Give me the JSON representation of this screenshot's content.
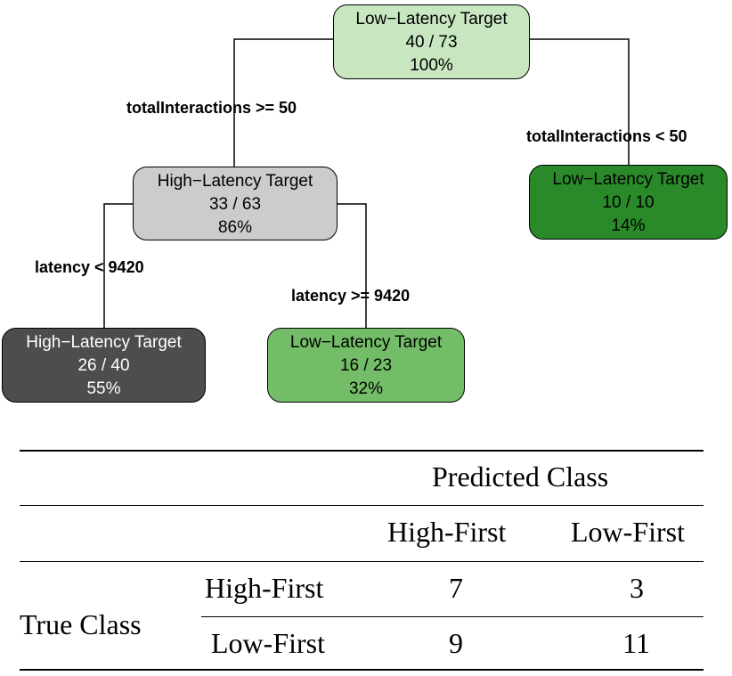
{
  "tree": {
    "nodes": [
      {
        "id": "root",
        "class": "Low−Latency Target",
        "ratio": "40 / 73",
        "pct": "100%",
        "color": "#c8e6bf"
      },
      {
        "id": "mid-left",
        "class": "High−Latency Target",
        "ratio": "33 / 63",
        "pct": "86%",
        "color": "#cccccc"
      },
      {
        "id": "right",
        "class": "Low−Latency Target",
        "ratio": "10 / 10",
        "pct": "14%",
        "color": "#2a8a2a"
      },
      {
        "id": "leaf-left",
        "class": "High−Latency Target",
        "ratio": "26 / 40",
        "pct": "55%",
        "color": "#4d4d4d"
      },
      {
        "id": "leaf-mid",
        "class": "Low−Latency Target",
        "ratio": "16 / 23",
        "pct": "32%",
        "color": "#74bd68"
      }
    ],
    "edge_labels": {
      "root_left": "totalInteractions >= 50",
      "root_right": "totalInteractions < 50",
      "mid_left": "latency < 9420",
      "mid_right": "latency >= 9420"
    }
  },
  "table": {
    "header_group": "Predicted Class",
    "col_headers": [
      "High-First",
      "Low-First"
    ],
    "row_group": "True Class",
    "rows": [
      {
        "label": "High-First",
        "values": [
          "7",
          "3"
        ]
      },
      {
        "label": "Low-First",
        "values": [
          "9",
          "11"
        ]
      }
    ]
  }
}
